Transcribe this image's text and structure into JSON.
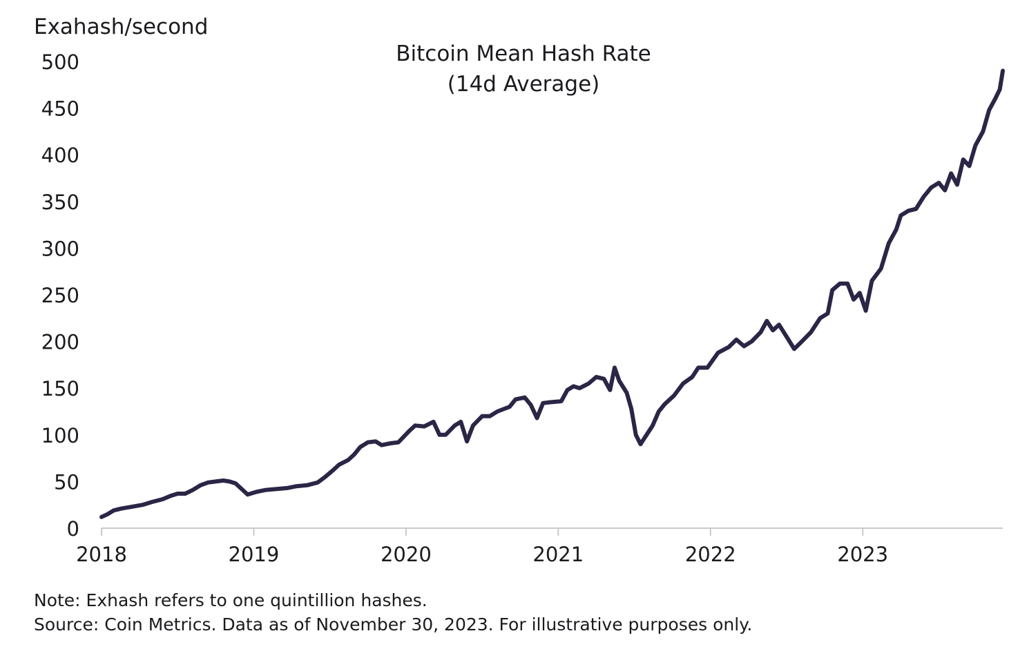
{
  "notes": {
    "note": "Note: Exhash refers to one quintillion hashes.",
    "source": "Source: Coin Metrics. Data as of November 30, 2023. For illustrative purposes only."
  },
  "chart_data": {
    "type": "line",
    "title": "Bitcoin Mean Hash Rate",
    "subtitle": "(14d Average)",
    "ylabel": "Exahash/second",
    "xlabel": "",
    "ylim": [
      0,
      500
    ],
    "xlim": [
      2018.0,
      2023.92
    ],
    "yticks": [
      0,
      50,
      100,
      150,
      200,
      250,
      300,
      350,
      400,
      450,
      500
    ],
    "xticks": [
      2018,
      2019,
      2020,
      2021,
      2022,
      2023
    ],
    "grid": false,
    "legend": "none",
    "colors": {
      "line": "#2b2546",
      "axis": "#c9c9c9",
      "text": "#1b1b1f"
    },
    "series": [
      {
        "values": [
          [
            2018.0,
            12
          ],
          [
            2018.04,
            15
          ],
          [
            2018.08,
            19
          ],
          [
            2018.13,
            21
          ],
          [
            2018.2,
            23
          ],
          [
            2018.27,
            25
          ],
          [
            2018.33,
            28
          ],
          [
            2018.4,
            31
          ],
          [
            2018.46,
            35
          ],
          [
            2018.5,
            37
          ],
          [
            2018.55,
            37
          ],
          [
            2018.6,
            41
          ],
          [
            2018.65,
            46
          ],
          [
            2018.7,
            49
          ],
          [
            2018.75,
            50
          ],
          [
            2018.8,
            51
          ],
          [
            2018.84,
            50
          ],
          [
            2018.88,
            48
          ],
          [
            2018.92,
            42
          ],
          [
            2018.96,
            36
          ],
          [
            2019.02,
            39
          ],
          [
            2019.08,
            41
          ],
          [
            2019.15,
            42
          ],
          [
            2019.22,
            43
          ],
          [
            2019.28,
            45
          ],
          [
            2019.35,
            46
          ],
          [
            2019.42,
            49
          ],
          [
            2019.47,
            55
          ],
          [
            2019.52,
            62
          ],
          [
            2019.56,
            68
          ],
          [
            2019.62,
            73
          ],
          [
            2019.66,
            79
          ],
          [
            2019.7,
            87
          ],
          [
            2019.75,
            92
          ],
          [
            2019.8,
            93
          ],
          [
            2019.84,
            89
          ],
          [
            2019.9,
            91
          ],
          [
            2019.95,
            92
          ],
          [
            2020.02,
            104
          ],
          [
            2020.06,
            110
          ],
          [
            2020.12,
            109
          ],
          [
            2020.18,
            114
          ],
          [
            2020.22,
            100
          ],
          [
            2020.26,
            100
          ],
          [
            2020.32,
            110
          ],
          [
            2020.36,
            114
          ],
          [
            2020.4,
            93
          ],
          [
            2020.44,
            110
          ],
          [
            2020.5,
            120
          ],
          [
            2020.55,
            120
          ],
          [
            2020.6,
            125
          ],
          [
            2020.68,
            130
          ],
          [
            2020.72,
            138
          ],
          [
            2020.78,
            140
          ],
          [
            2020.82,
            132
          ],
          [
            2020.86,
            118
          ],
          [
            2020.9,
            134
          ],
          [
            2020.95,
            135
          ],
          [
            2021.02,
            136
          ],
          [
            2021.06,
            148
          ],
          [
            2021.1,
            152
          ],
          [
            2021.14,
            150
          ],
          [
            2021.2,
            155
          ],
          [
            2021.25,
            162
          ],
          [
            2021.3,
            160
          ],
          [
            2021.34,
            148
          ],
          [
            2021.37,
            172
          ],
          [
            2021.4,
            158
          ],
          [
            2021.45,
            145
          ],
          [
            2021.48,
            128
          ],
          [
            2021.51,
            100
          ],
          [
            2021.54,
            90
          ],
          [
            2021.58,
            100
          ],
          [
            2021.62,
            110
          ],
          [
            2021.66,
            125
          ],
          [
            2021.7,
            133
          ],
          [
            2021.76,
            142
          ],
          [
            2021.82,
            155
          ],
          [
            2021.88,
            162
          ],
          [
            2021.92,
            172
          ],
          [
            2021.98,
            172
          ],
          [
            2022.05,
            188
          ],
          [
            2022.12,
            194
          ],
          [
            2022.17,
            202
          ],
          [
            2022.22,
            195
          ],
          [
            2022.27,
            200
          ],
          [
            2022.33,
            210
          ],
          [
            2022.37,
            222
          ],
          [
            2022.41,
            212
          ],
          [
            2022.45,
            218
          ],
          [
            2022.5,
            205
          ],
          [
            2022.55,
            192
          ],
          [
            2022.6,
            200
          ],
          [
            2022.66,
            210
          ],
          [
            2022.72,
            225
          ],
          [
            2022.77,
            230
          ],
          [
            2022.8,
            255
          ],
          [
            2022.85,
            262
          ],
          [
            2022.9,
            262
          ],
          [
            2022.94,
            245
          ],
          [
            2022.98,
            252
          ],
          [
            2023.02,
            233
          ],
          [
            2023.06,
            265
          ],
          [
            2023.12,
            278
          ],
          [
            2023.17,
            305
          ],
          [
            2023.22,
            320
          ],
          [
            2023.25,
            335
          ],
          [
            2023.3,
            340
          ],
          [
            2023.35,
            342
          ],
          [
            2023.4,
            355
          ],
          [
            2023.45,
            365
          ],
          [
            2023.5,
            370
          ],
          [
            2023.54,
            362
          ],
          [
            2023.58,
            380
          ],
          [
            2023.62,
            368
          ],
          [
            2023.66,
            395
          ],
          [
            2023.7,
            388
          ],
          [
            2023.74,
            410
          ],
          [
            2023.79,
            425
          ],
          [
            2023.83,
            448
          ],
          [
            2023.87,
            460
          ],
          [
            2023.9,
            470
          ],
          [
            2023.92,
            490
          ]
        ]
      }
    ]
  }
}
